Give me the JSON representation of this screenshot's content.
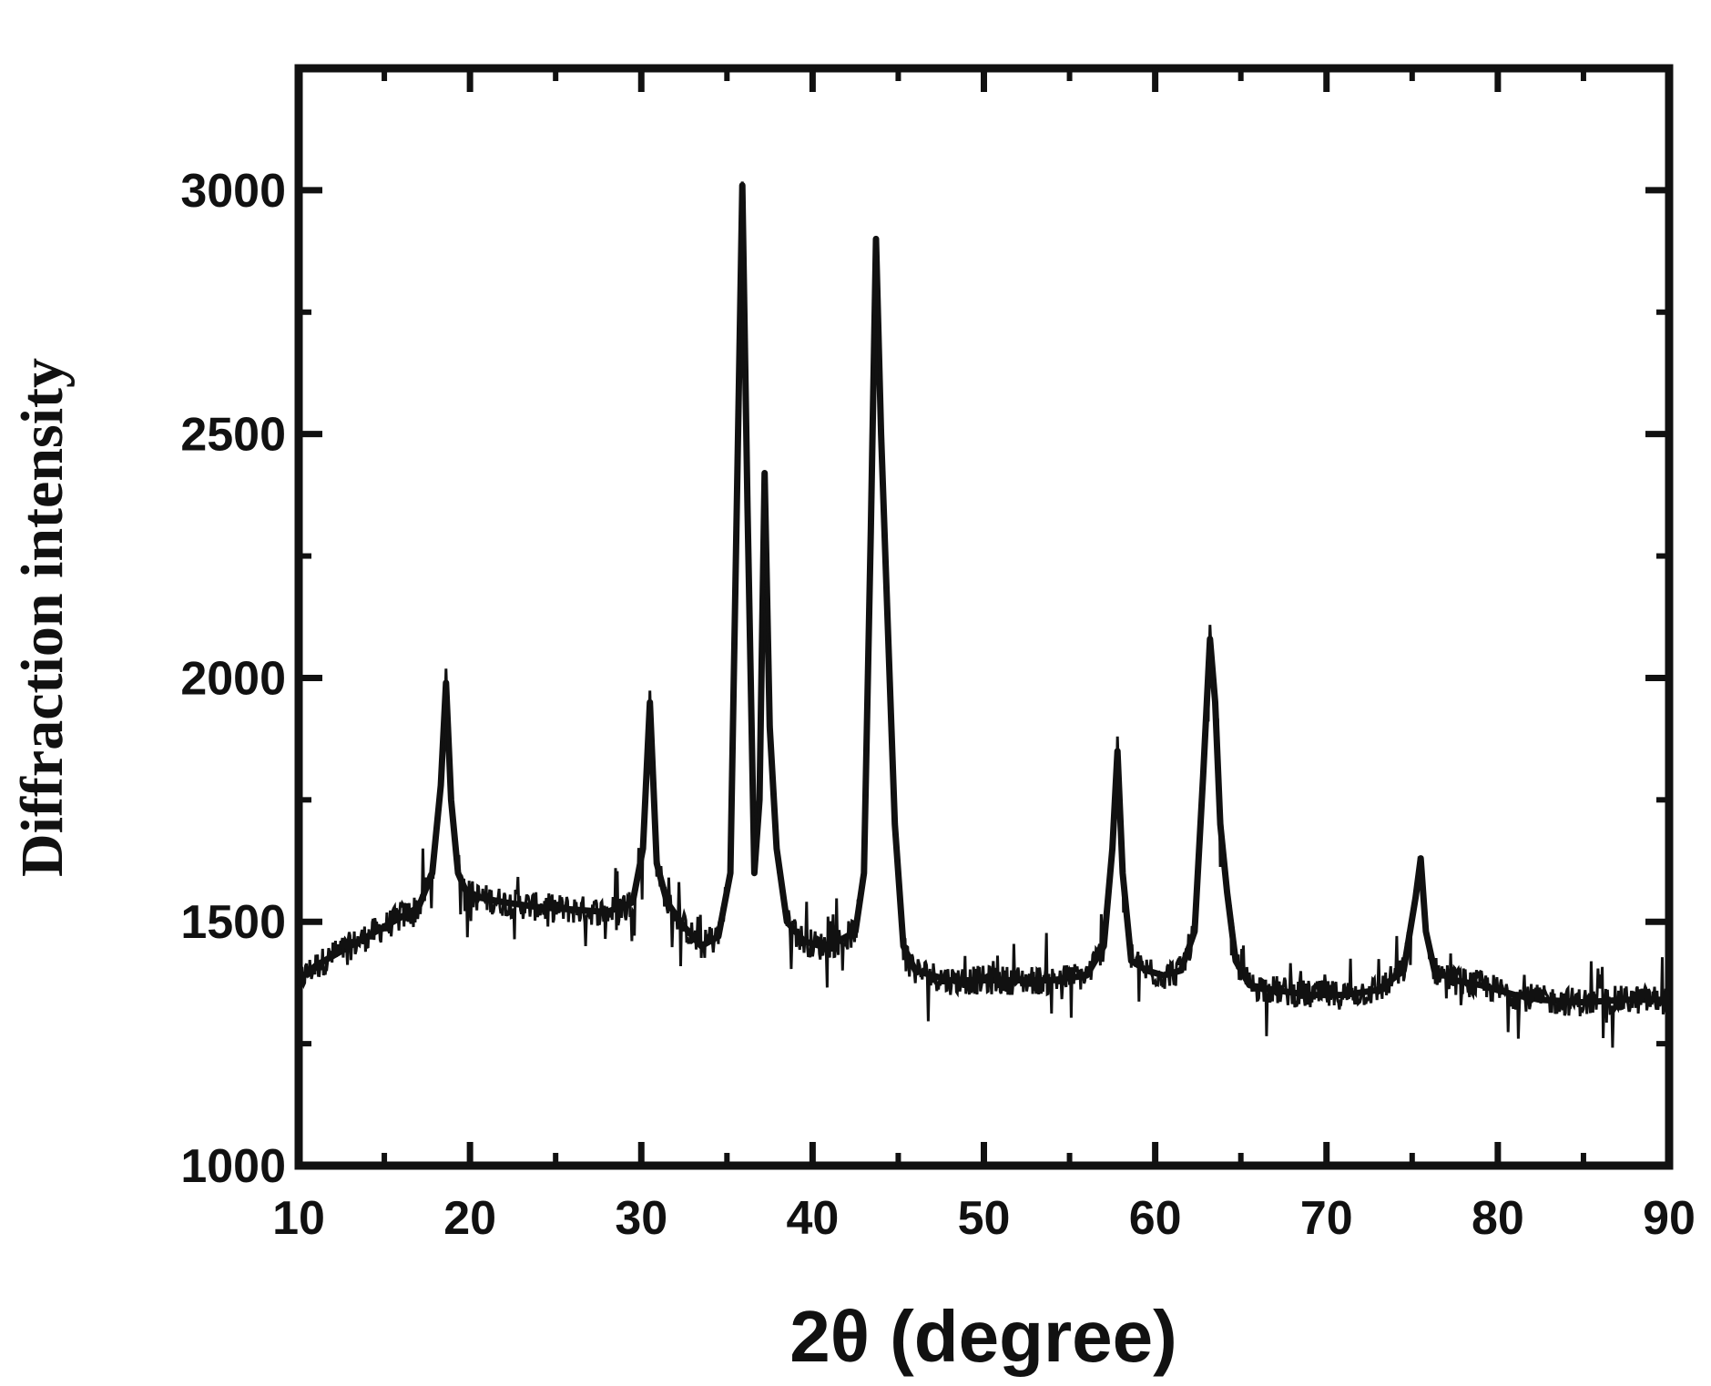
{
  "chart_data": {
    "type": "line",
    "title": "",
    "xlabel": "2θ (degree)",
    "ylabel": "Diffraction intensity",
    "xlim": [
      10,
      90
    ],
    "ylim": [
      1000,
      3250
    ],
    "x_ticks": [
      10,
      20,
      30,
      40,
      50,
      60,
      70,
      80,
      90
    ],
    "y_ticks": [
      1000,
      1500,
      2000,
      2500,
      3000
    ],
    "grid": false,
    "legend": "none",
    "line_color": "#111111",
    "series": [
      {
        "x": [
          10,
          11,
          12,
          13,
          14,
          15,
          16,
          17,
          17.8,
          18.3,
          18.6,
          18.9,
          19.3,
          19.8,
          20.5,
          22,
          24,
          26,
          28,
          29.5,
          30.1,
          30.5,
          30.9,
          31.5,
          32.5,
          33.5,
          34.5,
          35.2,
          35.6,
          35.9,
          36.2,
          36.6,
          36.9,
          37.2,
          37.5,
          37.9,
          38.5,
          39.5,
          40.5,
          41.5,
          42.5,
          43,
          43.4,
          43.7,
          44,
          44.4,
          44.8,
          45.3,
          46,
          48,
          50,
          52,
          54,
          56,
          57,
          57.5,
          57.8,
          58.1,
          58.6,
          59.5,
          60.5,
          61.5,
          62.3,
          62.8,
          63.2,
          63.5,
          63.8,
          64.2,
          64.7,
          65.5,
          67,
          69,
          71,
          73,
          74.5,
          75.2,
          75.5,
          75.8,
          76.3,
          77.5,
          79,
          80,
          81,
          82.5,
          85,
          87.5,
          90
        ],
        "y": [
          1380,
          1410,
          1430,
          1450,
          1470,
          1490,
          1510,
          1530,
          1600,
          1780,
          1990,
          1750,
          1600,
          1560,
          1550,
          1540,
          1530,
          1525,
          1520,
          1540,
          1650,
          1950,
          1620,
          1540,
          1490,
          1450,
          1470,
          1600,
          2400,
          3010,
          2350,
          1600,
          1750,
          2420,
          1900,
          1650,
          1500,
          1460,
          1450,
          1460,
          1480,
          1600,
          2300,
          2900,
          2500,
          2100,
          1700,
          1450,
          1400,
          1380,
          1380,
          1380,
          1380,
          1390,
          1450,
          1650,
          1850,
          1600,
          1420,
          1400,
          1390,
          1400,
          1480,
          1800,
          2080,
          1950,
          1700,
          1560,
          1420,
          1370,
          1360,
          1350,
          1350,
          1360,
          1400,
          1550,
          1630,
          1480,
          1400,
          1380,
          1370,
          1360,
          1350,
          1340,
          1335,
          1340,
          1340
        ]
      }
    ]
  }
}
